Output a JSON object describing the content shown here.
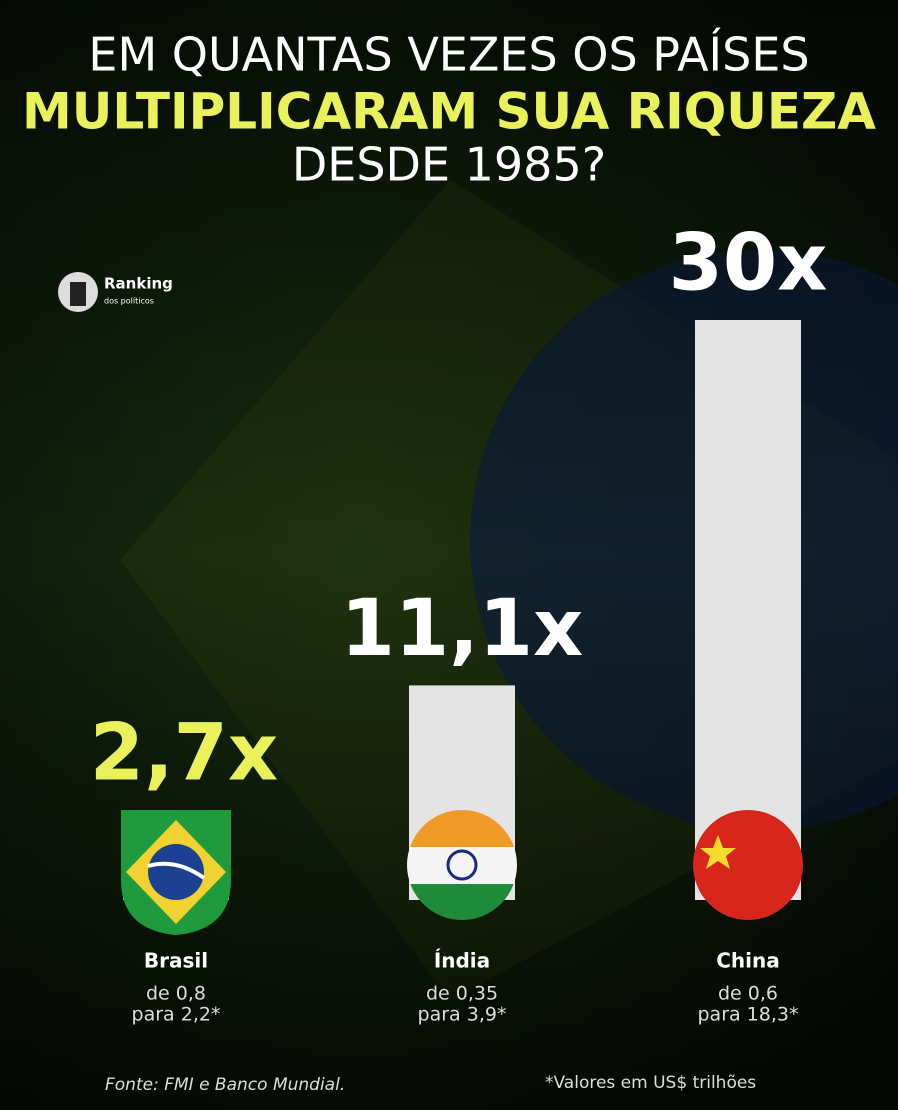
{
  "chart_data": {
    "type": "bar",
    "title_lines": [
      "EM QUANTAS VEZES OS PAÍSES",
      "MULTIPLICARAM SUA RIQUEZA",
      "DESDE 1985?"
    ],
    "logo": [
      "Ranking",
      "dos políticos"
    ],
    "categories": [
      "Brasil",
      "Índia",
      "China"
    ],
    "values": [
      2.7,
      11.1,
      30
    ],
    "value_labels": [
      "2,7x",
      "11,1x",
      "30x"
    ],
    "notes": [
      [
        "de 0,8",
        "para 2,2*"
      ],
      [
        "de 0,35",
        "para 3,9*"
      ],
      [
        "de 0,6",
        "para 18,3*"
      ]
    ],
    "color": "#e4e4e4",
    "ylim": [
      0,
      30
    ],
    "source": "Fonte: FMI e Banco Mundial.",
    "footnote": "*Valores em US$ trilhões"
  }
}
